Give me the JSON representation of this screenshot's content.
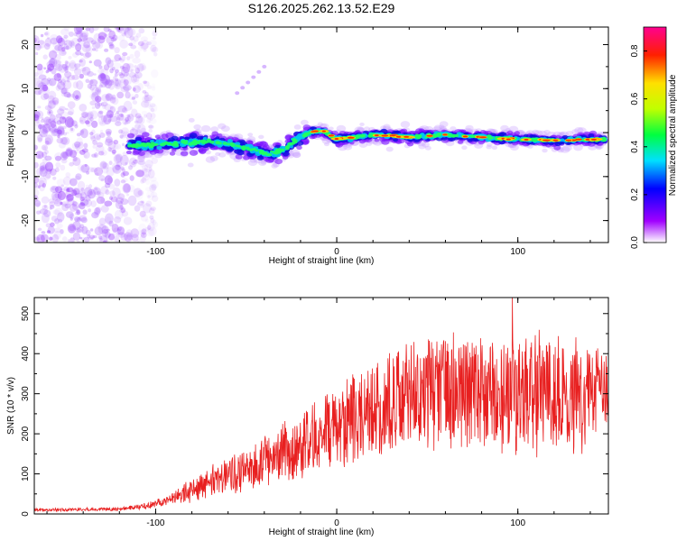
{
  "title": "S126.2025.262.13.52.E29",
  "chart_data": [
    {
      "type": "heatmap",
      "xlabel": "Height of straight line (km)",
      "ylabel": "Frequency (Hz)",
      "xlim": [
        -167,
        150
      ],
      "ylim": [
        -25,
        24
      ],
      "xticks": [
        -100,
        0,
        100
      ],
      "yticks": [
        -20,
        -10,
        0,
        10,
        20
      ],
      "colorbar": {
        "label": "Normalized spectral amplitude",
        "range": [
          0.0,
          0.9
        ],
        "ticks": [
          0.0,
          0.2,
          0.4,
          0.6,
          0.8
        ],
        "ticklabels": [
          "0.0",
          "0.2",
          "0.4",
          "0.6",
          "0.8"
        ],
        "colors": [
          "#ffffff",
          "#a000ff",
          "#0000ff",
          "#00e0ff",
          "#00ff40",
          "#c0ff00",
          "#ffe000",
          "#ff2000",
          "#ff0090"
        ]
      },
      "ridge": {
        "x": [
          -115,
          -90,
          -70,
          -55,
          -45,
          -38,
          -30,
          -22,
          -15,
          -8,
          0,
          10,
          20,
          40,
          60,
          80,
          100,
          120,
          148
        ],
        "freq": [
          -3.0,
          -2.5,
          -2.0,
          -3.0,
          -4.0,
          -5.0,
          -4.0,
          -1.5,
          0.0,
          0.5,
          -1.5,
          -1.0,
          -0.5,
          -1.0,
          -0.5,
          -1.0,
          -1.5,
          -1.8,
          -1.5
        ]
      },
      "noise_region_x": [
        -167,
        -110
      ]
    },
    {
      "type": "line",
      "xlabel": "Height of straight line (km)",
      "ylabel": "SNR (10 * v/v)",
      "xlim": [
        -167,
        150
      ],
      "ylim": [
        0,
        540
      ],
      "xticks": [
        -100,
        0,
        100
      ],
      "yticks": [
        0,
        100,
        200,
        300,
        400,
        500
      ],
      "color": "#e82020",
      "envelope": {
        "x": [
          -167,
          -120,
          -105,
          -90,
          -80,
          -70,
          -60,
          -50,
          -40,
          -30,
          -20,
          -10,
          0,
          10,
          20,
          30,
          40,
          60,
          80,
          100,
          120,
          150
        ],
        "y": [
          10,
          12,
          20,
          40,
          60,
          80,
          95,
          110,
          130,
          150,
          170,
          200,
          220,
          240,
          260,
          285,
          300,
          305,
          300,
          300,
          295,
          290
        ]
      },
      "peak": {
        "x": 97,
        "y": 540
      }
    }
  ]
}
